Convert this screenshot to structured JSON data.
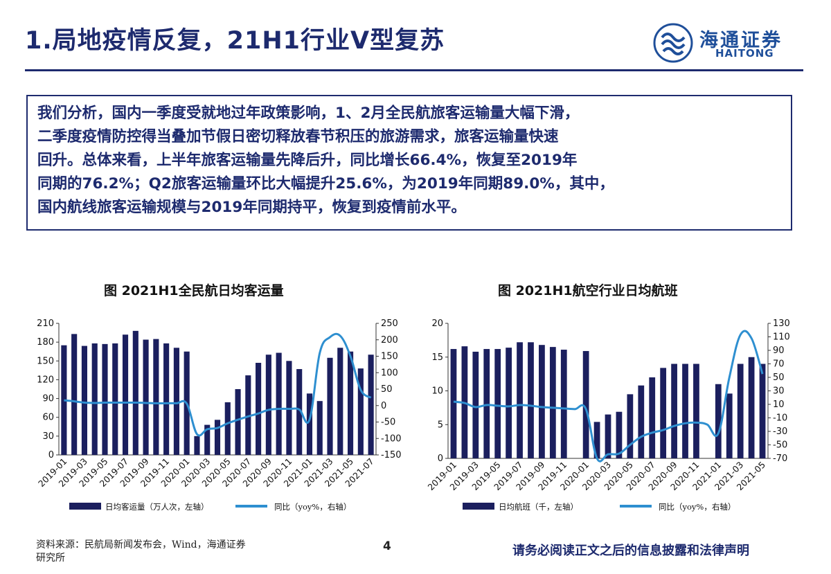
{
  "header": {
    "title": "1.局地疫情反复，21H1行业V型复苏",
    "logo_cn": "海通证券",
    "logo_en": "HAITONG"
  },
  "summary": {
    "lines": [
      "我们分析，国内一季度受就地过年政策影响，1、2月全民航旅客运输量大幅下滑，",
      "二季度疫情防控得当叠加节假日密切释放春节积压的旅游需求，旅客运输量快速",
      "回升。总体来看，上半年旅客运输量先降后升，同比增长66.4%，恢复至2019年",
      "同期的76.2%；Q2旅客运输量环比大幅提升25.6%，为2019年同期89.0%，其中，",
      "国内航线旅客运输规模与2019年同期持平，恢复到疫情前水平。"
    ]
  },
  "footer": {
    "source_line1": "资料来源：民航局新闻发布会，Wind，海通证券",
    "source_line2": "研究所",
    "page": "4",
    "disclaimer": "请务必阅读正文之后的信息披露和法律声明"
  },
  "colors": {
    "bar": "#1b1f5e",
    "line": "#2e8fd0",
    "brand": "#1d2a6e"
  },
  "chart_data": [
    {
      "type": "bar",
      "title": "图  2021H1全民航日均客运量",
      "x": [
        "2019-01",
        "2019-02",
        "2019-03",
        "2019-04",
        "2019-05",
        "2019-06",
        "2019-07",
        "2019-08",
        "2019-09",
        "2019-10",
        "2019-11",
        "2019-12",
        "2020-01",
        "2020-02",
        "2020-03",
        "2020-04",
        "2020-05",
        "2020-06",
        "2020-07",
        "2020-08",
        "2020-09",
        "2020-10",
        "2020-11",
        "2020-12",
        "2021-01",
        "2021-02",
        "2021-03",
        "2021-04",
        "2021-05",
        "2021-06",
        "2021-07"
      ],
      "x_tick_labels": [
        "2019-01",
        "2019-03",
        "2019-05",
        "2019-07",
        "2019-09",
        "2019-11",
        "2020-01",
        "2020-03",
        "2020-05",
        "2020-07",
        "2020-09",
        "2020-11",
        "2021-01",
        "2021-03",
        "2021-05",
        "2021-07"
      ],
      "series": [
        {
          "name": "日均客运量（万人次，左轴）",
          "type": "bar",
          "axis": "left",
          "values": [
            175,
            193,
            174,
            178,
            177,
            178,
            192,
            198,
            184,
            185,
            178,
            171,
            165,
            30,
            48,
            56,
            84,
            105,
            127,
            147,
            160,
            163,
            150,
            137,
            98,
            86,
            155,
            171,
            165,
            138,
            160
          ]
        },
        {
          "name": "同比（yoy%，右轴）",
          "type": "line",
          "axis": "right",
          "values": [
            16,
            13,
            9,
            8,
            9,
            9,
            9,
            9,
            8,
            7,
            7,
            7,
            6,
            -87,
            -72,
            -68,
            -54,
            -43,
            -33,
            -24,
            -13,
            -10,
            -10,
            -12,
            -43,
            160,
            208,
            212,
            150,
            48,
            24
          ]
        }
      ],
      "y_left": {
        "min": 0,
        "max": 210,
        "ticks": [
          0,
          30,
          60,
          90,
          120,
          150,
          180,
          210
        ]
      },
      "y_right": {
        "min": -150,
        "max": 250,
        "ticks": [
          -150,
          -100,
          -50,
          0,
          50,
          100,
          150,
          200,
          250
        ]
      },
      "legend": [
        "日均客运量（万人次，左轴）",
        "同比（yoy%，右轴）"
      ]
    },
    {
      "type": "bar",
      "title": "图  2021H1航空行业日均航班",
      "x": [
        "2019-01",
        "2019-02",
        "2019-03",
        "2019-04",
        "2019-05",
        "2019-06",
        "2019-07",
        "2019-08",
        "2019-09",
        "2019-10",
        "2019-11",
        "2019-12",
        "2020-01",
        "2020-02",
        "2020-03",
        "2020-04",
        "2020-05",
        "2020-06",
        "2020-07",
        "2020-08",
        "2020-09",
        "2020-10",
        "2020-11",
        "2020-12",
        "2021-01",
        "2021-02",
        "2021-03",
        "2021-04",
        "2021-05"
      ],
      "x_tick_labels": [
        "2019-01",
        "2019-03",
        "2019-05",
        "2019-07",
        "2019-09",
        "2019-11",
        "2020-01",
        "2020-03",
        "2020-05",
        "2020-07",
        "2020-09",
        "2020-11",
        "2021-01",
        "2021-03",
        "2021-05"
      ],
      "series": [
        {
          "name": "日均航班（千，左轴）",
          "type": "bar",
          "axis": "left",
          "values": [
            16.2,
            16.6,
            15.8,
            16.2,
            16.2,
            16.4,
            17.2,
            17.2,
            16.8,
            16.5,
            16.1,
            null,
            15.9,
            5.4,
            6.5,
            6.9,
            9.5,
            10.8,
            12,
            13.4,
            14,
            14,
            14,
            null,
            11,
            9.6,
            14,
            15,
            14
          ]
        },
        {
          "name": "同比（yoy%，右轴）",
          "type": "line",
          "axis": "right",
          "values": [
            14,
            12,
            6,
            9,
            8,
            7,
            9,
            8,
            6,
            5,
            4,
            3,
            3,
            -70,
            -64,
            -63,
            -50,
            -38,
            -32,
            -28,
            -22,
            -18,
            -17,
            -20,
            -33,
            50,
            113,
            108,
            55
          ]
        }
      ],
      "y_left": {
        "min": 0,
        "max": 20,
        "ticks": [
          0,
          5,
          10,
          15,
          20
        ]
      },
      "y_right": {
        "min": -70,
        "max": 130,
        "ticks": [
          -70,
          -50,
          -30,
          -10,
          10,
          30,
          50,
          70,
          90,
          110,
          130
        ]
      },
      "legend": [
        "日均航班（千，左轴）",
        "同比（yoy%，右轴）"
      ]
    }
  ]
}
